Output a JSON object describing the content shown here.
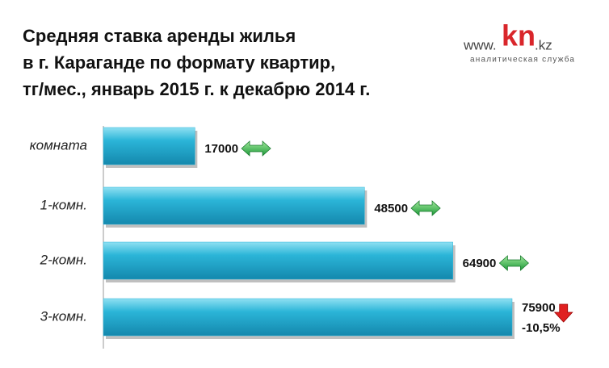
{
  "chart_data": {
    "type": "bar",
    "orientation": "horizontal",
    "title_lines": [
      "Средняя ставка аренды жилья",
      "в г. Караганде по формату квартир,",
      "тг/мес., январь 2015 г. к декабрю 2014 г."
    ],
    "logo": {
      "prefix": "www.",
      "name": "kn",
      "suffix": ".kz",
      "tagline": "аналитическая служба"
    },
    "categories": [
      "комната",
      "1-комн.",
      "2-комн.",
      "3-комн."
    ],
    "values": [
      17000,
      48500,
      64900,
      75900
    ],
    "change_labels": [
      null,
      null,
      null,
      "-10,5%"
    ],
    "color": "#2bb5d8",
    "xlim": [
      0,
      90000
    ]
  }
}
